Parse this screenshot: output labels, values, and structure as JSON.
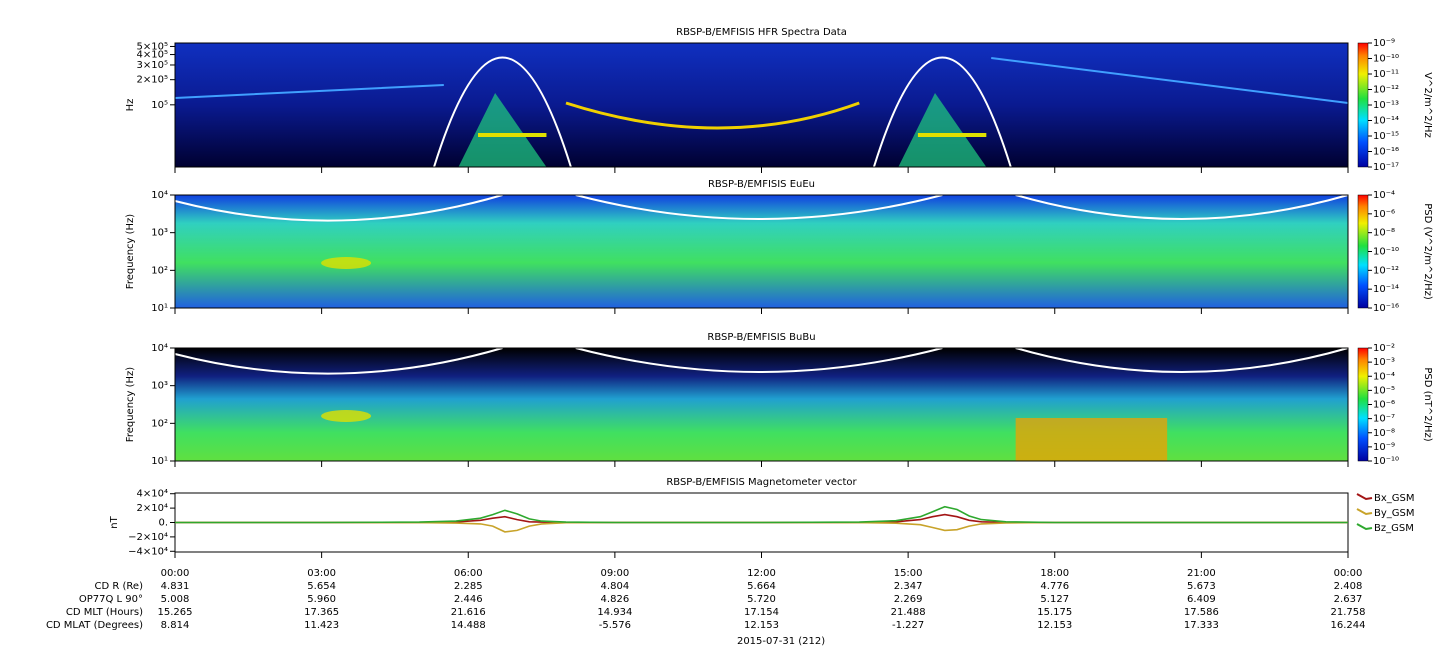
{
  "chart_data": [
    {
      "type": "heatmap",
      "title": "RBSP-B/EMFISIS  HFR Spectra Data",
      "ylabel": "Hz",
      "log_scale": true,
      "ylim": [
        18000,
        550000
      ],
      "yticks": [
        {
          "value": 500000,
          "label": "5×10⁵"
        },
        {
          "value": 400000,
          "label": "4×10⁵"
        },
        {
          "value": 300000,
          "label": "3×10⁵"
        },
        {
          "value": 200000,
          "label": "2×10⁵"
        },
        {
          "value": 100000,
          "label": "10⁵"
        }
      ],
      "colorbar": {
        "label": "V^2/m^2/Hz",
        "lim": [
          1e-17,
          1e-09
        ],
        "ticks": [
          {
            "value": 1e-09,
            "label": "10⁻⁹"
          },
          {
            "value": 1e-10,
            "label": "10⁻¹⁰"
          },
          {
            "value": 1e-11,
            "label": "10⁻¹¹"
          },
          {
            "value": 1e-12,
            "label": "10⁻¹²"
          },
          {
            "value": 1e-13,
            "label": "10⁻¹³"
          },
          {
            "value": 1e-14,
            "label": "10⁻¹⁴"
          },
          {
            "value": 1e-15,
            "label": "10⁻¹⁵"
          },
          {
            "value": 1e-16,
            "label": "10⁻¹⁶"
          },
          {
            "value": 1e-17,
            "label": "10⁻¹⁷"
          }
        ]
      }
    },
    {
      "type": "heatmap",
      "title": "RBSP-B/EMFISIS  EuEu",
      "ylabel": "Frequency (Hz)",
      "log_scale": true,
      "ylim": [
        10,
        10000
      ],
      "yticks": [
        {
          "value": 10000,
          "label": "10⁴"
        },
        {
          "value": 1000,
          "label": "10³"
        },
        {
          "value": 100,
          "label": "10²"
        },
        {
          "value": 10,
          "label": "10¹"
        }
      ],
      "colorbar": {
        "label": "PSD (V^2/m^2/Hz)",
        "lim": [
          1e-16,
          0.0001
        ],
        "ticks": [
          {
            "value": 0.0001,
            "label": "10⁻⁴"
          },
          {
            "value": 1e-06,
            "label": "10⁻⁶"
          },
          {
            "value": 1e-08,
            "label": "10⁻⁸"
          },
          {
            "value": 1e-10,
            "label": "10⁻¹⁰"
          },
          {
            "value": 1e-12,
            "label": "10⁻¹²"
          },
          {
            "value": 1e-14,
            "label": "10⁻¹⁴"
          },
          {
            "value": 1e-16,
            "label": "10⁻¹⁶"
          }
        ]
      }
    },
    {
      "type": "heatmap",
      "title": "RBSP-B/EMFISIS  BuBu",
      "ylabel": "Frequency (Hz)",
      "log_scale": true,
      "ylim": [
        10,
        10000
      ],
      "yticks": [
        {
          "value": 10000,
          "label": "10⁴"
        },
        {
          "value": 1000,
          "label": "10³"
        },
        {
          "value": 100,
          "label": "10²"
        },
        {
          "value": 10,
          "label": "10¹"
        }
      ],
      "colorbar": {
        "label": "PSD (nT^2/Hz)",
        "lim": [
          1e-10,
          0.01
        ],
        "ticks": [
          {
            "value": 0.01,
            "label": "10⁻²"
          },
          {
            "value": 0.001,
            "label": "10⁻³"
          },
          {
            "value": 0.0001,
            "label": "10⁻⁴"
          },
          {
            "value": 1e-05,
            "label": "10⁻⁵"
          },
          {
            "value": 1e-06,
            "label": "10⁻⁶"
          },
          {
            "value": 1e-07,
            "label": "10⁻⁷"
          },
          {
            "value": 1e-08,
            "label": "10⁻⁸"
          },
          {
            "value": 1e-09,
            "label": "10⁻⁹"
          },
          {
            "value": 1e-10,
            "label": "10⁻¹⁰"
          }
        ]
      }
    },
    {
      "type": "line",
      "title": "RBSP-B/EMFISIS  Magnetometer vector",
      "ylabel": "nT",
      "xlabel": "2015-07-31 (212)",
      "xlim": [
        0,
        24
      ],
      "xticks": [
        {
          "value": 0,
          "label": "00:00"
        },
        {
          "value": 3,
          "label": "03:00"
        },
        {
          "value": 6,
          "label": "06:00"
        },
        {
          "value": 9,
          "label": "09:00"
        },
        {
          "value": 12,
          "label": "12:00"
        },
        {
          "value": 15,
          "label": "15:00"
        },
        {
          "value": 18,
          "label": "18:00"
        },
        {
          "value": 21,
          "label": "21:00"
        },
        {
          "value": 24,
          "label": "00:00"
        }
      ],
      "ylim": [
        -41000,
        41000
      ],
      "yticks": [
        {
          "value": 40000,
          "label": "4×10⁴"
        },
        {
          "value": 20000,
          "label": "2×10⁴"
        },
        {
          "value": 0,
          "label": "0."
        },
        {
          "value": -20000,
          "label": "−2×10⁴"
        },
        {
          "value": -40000,
          "label": "−4×10⁴"
        }
      ],
      "x": [
        0,
        3,
        5,
        5.75,
        6.25,
        6.5,
        6.75,
        7,
        7.25,
        7.5,
        8,
        9,
        12,
        14,
        14.75,
        15.25,
        15.5,
        15.75,
        16,
        16.25,
        16.5,
        17,
        18,
        21,
        24
      ],
      "series": [
        {
          "name": "Bx_GSM",
          "color": "#a31515",
          "values": [
            0,
            0,
            200,
            800,
            3000,
            6000,
            8000,
            4000,
            1000,
            500,
            100,
            0,
            0,
            200,
            1000,
            4000,
            8000,
            11000,
            8000,
            3000,
            1000,
            200,
            0,
            0,
            0
          ]
        },
        {
          "name": "By_GSM",
          "color": "#c8a32a",
          "values": [
            0,
            0,
            -200,
            -800,
            -2000,
            -5000,
            -13000,
            -11000,
            -5000,
            -2000,
            -300,
            0,
            0,
            -200,
            -1000,
            -3000,
            -7000,
            -11000,
            -10000,
            -5000,
            -2000,
            -500,
            0,
            0,
            0
          ]
        },
        {
          "name": "Bz_GSM",
          "color": "#2ea82e",
          "values": [
            0,
            0,
            500,
            2000,
            6000,
            11000,
            17000,
            12000,
            5000,
            2000,
            500,
            0,
            0,
            500,
            2500,
            8000,
            15000,
            22000,
            18000,
            9000,
            4000,
            1000,
            0,
            0,
            0
          ]
        }
      ]
    }
  ],
  "ephemeris": {
    "rows": [
      {
        "label": "CD R (Re)",
        "values": [
          "4.831",
          "5.654",
          "2.285",
          "4.804",
          "5.664",
          "2.347",
          "4.776",
          "5.673",
          "2.408"
        ]
      },
      {
        "label": "OP77Q L 90°",
        "values": [
          "5.008",
          "5.960",
          "2.446",
          "4.826",
          "5.720",
          "2.269",
          "5.127",
          "6.409",
          "2.637"
        ]
      },
      {
        "label": "CD MLT (Hours)",
        "values": [
          "15.265",
          "17.365",
          "21.616",
          "14.934",
          "17.154",
          "21.488",
          "15.175",
          "17.586",
          "21.758"
        ]
      },
      {
        "label": "CD MLAT (Degrees)",
        "values": [
          "8.814",
          "11.423",
          "14.488",
          "-5.576",
          "12.153",
          "-1.227",
          "12.153",
          "17.333",
          "16.244"
        ]
      }
    ]
  }
}
